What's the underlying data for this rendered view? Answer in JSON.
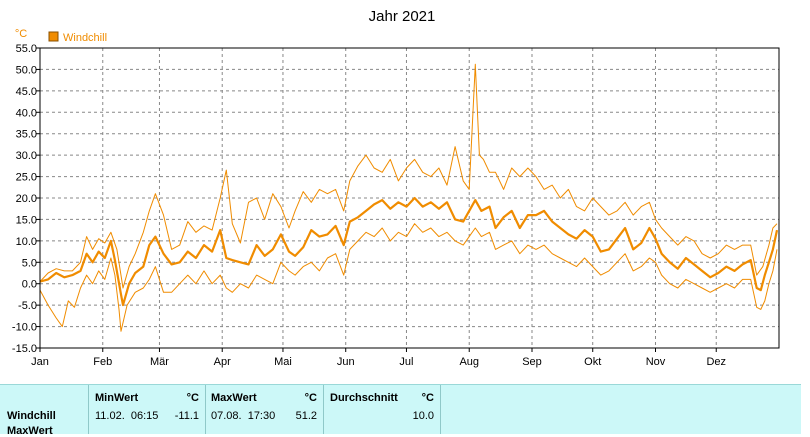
{
  "chart_data": {
    "type": "line",
    "title": "Jahr 2021",
    "ylabel": "°C",
    "legend": "Windchill",
    "legend_placement": "top-left",
    "grid": true,
    "ylim": [
      -15,
      55
    ],
    "y_ticks": [
      "55.0",
      "50.0",
      "45.0",
      "40.0",
      "35.0",
      "30.0",
      "25.0",
      "20.0",
      "15.0",
      "10.0",
      "5.0",
      "0.0",
      "-5.0",
      "-10.0",
      "-15.0"
    ],
    "x_ticks": [
      "Jan",
      "Feb",
      "Mär",
      "Apr",
      "Mai",
      "Jun",
      "Jul",
      "Aug",
      "Sep",
      "Okt",
      "Nov",
      "Dez"
    ],
    "x_tick_day": [
      1,
      32,
      60,
      91,
      121,
      152,
      182,
      213,
      244,
      274,
      305,
      335
    ],
    "days_in_year": 365,
    "colors": {
      "series": "#f08c00",
      "axis": "#000000",
      "grid": "#888888"
    },
    "series": [
      {
        "name": "Windchill",
        "points": [
          [
            1,
            0.5
          ],
          [
            5,
            1.0
          ],
          [
            9,
            2.5
          ],
          [
            13,
            1.5
          ],
          [
            17,
            2.0
          ],
          [
            21,
            3.0
          ],
          [
            24,
            7.0
          ],
          [
            27,
            5.0
          ],
          [
            30,
            7.5
          ],
          [
            33,
            6.0
          ],
          [
            36,
            10.0
          ],
          [
            38,
            5.5
          ],
          [
            41,
            -2.5
          ],
          [
            42,
            -5.0
          ],
          [
            45,
            0.0
          ],
          [
            48,
            2.5
          ],
          [
            52,
            4.0
          ],
          [
            55,
            9.0
          ],
          [
            58,
            11.0
          ],
          [
            62,
            7.0
          ],
          [
            66,
            4.5
          ],
          [
            70,
            5.0
          ],
          [
            74,
            7.5
          ],
          [
            78,
            6.0
          ],
          [
            82,
            9.0
          ],
          [
            86,
            7.5
          ],
          [
            90,
            12.5
          ],
          [
            93,
            6.0
          ],
          [
            96,
            5.5
          ],
          [
            100,
            5.0
          ],
          [
            104,
            4.5
          ],
          [
            108,
            9.0
          ],
          [
            112,
            6.5
          ],
          [
            116,
            8.0
          ],
          [
            120,
            11.5
          ],
          [
            124,
            7.5
          ],
          [
            127,
            6.5
          ],
          [
            131,
            8.5
          ],
          [
            135,
            12.5
          ],
          [
            139,
            11.0
          ],
          [
            143,
            11.5
          ],
          [
            147,
            13.5
          ],
          [
            151,
            9.0
          ],
          [
            154,
            14.5
          ],
          [
            158,
            15.5
          ],
          [
            162,
            17.0
          ],
          [
            166,
            18.5
          ],
          [
            170,
            19.5
          ],
          [
            174,
            17.5
          ],
          [
            178,
            19.0
          ],
          [
            182,
            18.0
          ],
          [
            186,
            20.0
          ],
          [
            190,
            18.0
          ],
          [
            194,
            19.0
          ],
          [
            198,
            17.5
          ],
          [
            202,
            19.0
          ],
          [
            206,
            15.0
          ],
          [
            210,
            14.5
          ],
          [
            213,
            17.0
          ],
          [
            216,
            19.5
          ],
          [
            219,
            17.0
          ],
          [
            223,
            18.0
          ],
          [
            226,
            13.0
          ],
          [
            230,
            15.5
          ],
          [
            234,
            17.0
          ],
          [
            238,
            13.0
          ],
          [
            242,
            16.0
          ],
          [
            246,
            16.0
          ],
          [
            250,
            17.0
          ],
          [
            254,
            14.5
          ],
          [
            258,
            13.0
          ],
          [
            262,
            11.5
          ],
          [
            266,
            10.5
          ],
          [
            270,
            12.5
          ],
          [
            274,
            11.0
          ],
          [
            278,
            7.5
          ],
          [
            282,
            8.0
          ],
          [
            286,
            10.5
          ],
          [
            290,
            13.0
          ],
          [
            294,
            8.0
          ],
          [
            298,
            9.5
          ],
          [
            302,
            13.0
          ],
          [
            305,
            10.5
          ],
          [
            308,
            7.0
          ],
          [
            312,
            5.0
          ],
          [
            316,
            3.5
          ],
          [
            320,
            6.0
          ],
          [
            324,
            4.5
          ],
          [
            328,
            3.0
          ],
          [
            332,
            1.5
          ],
          [
            336,
            2.5
          ],
          [
            340,
            4.0
          ],
          [
            344,
            3.0
          ],
          [
            348,
            4.5
          ],
          [
            352,
            5.5
          ],
          [
            355,
            -1.0
          ],
          [
            357,
            -1.5
          ],
          [
            359,
            2.0
          ],
          [
            361,
            5.0
          ],
          [
            363,
            8.0
          ],
          [
            365,
            12.5
          ]
        ]
      },
      {
        "name": "MaxWert",
        "points": [
          [
            1,
            0.5
          ],
          [
            5,
            2.5
          ],
          [
            9,
            3.5
          ],
          [
            13,
            3.0
          ],
          [
            17,
            3.0
          ],
          [
            21,
            5.0
          ],
          [
            24,
            11.0
          ],
          [
            27,
            8.0
          ],
          [
            30,
            10.5
          ],
          [
            33,
            9.5
          ],
          [
            36,
            12.0
          ],
          [
            39,
            8.0
          ],
          [
            42,
            -1.0
          ],
          [
            45,
            4.0
          ],
          [
            48,
            7.0
          ],
          [
            52,
            12.0
          ],
          [
            55,
            17.0
          ],
          [
            58,
            21.0
          ],
          [
            62,
            16.0
          ],
          [
            66,
            8.0
          ],
          [
            70,
            9.0
          ],
          [
            74,
            14.5
          ],
          [
            78,
            12.0
          ],
          [
            82,
            13.5
          ],
          [
            86,
            12.5
          ],
          [
            90,
            20.0
          ],
          [
            93,
            26.5
          ],
          [
            96,
            14.0
          ],
          [
            100,
            9.5
          ],
          [
            104,
            19.0
          ],
          [
            108,
            20.0
          ],
          [
            112,
            15.0
          ],
          [
            116,
            21.0
          ],
          [
            120,
            18.0
          ],
          [
            124,
            13.0
          ],
          [
            127,
            17.0
          ],
          [
            131,
            21.5
          ],
          [
            135,
            19.0
          ],
          [
            139,
            22.0
          ],
          [
            143,
            21.0
          ],
          [
            147,
            22.0
          ],
          [
            151,
            17.0
          ],
          [
            154,
            24.0
          ],
          [
            158,
            27.5
          ],
          [
            162,
            30.0
          ],
          [
            166,
            27.0
          ],
          [
            170,
            26.0
          ],
          [
            174,
            29.0
          ],
          [
            178,
            24.0
          ],
          [
            182,
            27.0
          ],
          [
            186,
            29.0
          ],
          [
            190,
            26.0
          ],
          [
            194,
            25.0
          ],
          [
            198,
            27.0
          ],
          [
            202,
            23.0
          ],
          [
            206,
            32.0
          ],
          [
            210,
            24.0
          ],
          [
            213,
            22.0
          ],
          [
            216,
            51.2
          ],
          [
            218,
            30.0
          ],
          [
            220,
            29.0
          ],
          [
            223,
            26.0
          ],
          [
            226,
            26.0
          ],
          [
            230,
            22.0
          ],
          [
            234,
            27.0
          ],
          [
            238,
            25.0
          ],
          [
            242,
            27.0
          ],
          [
            246,
            25.0
          ],
          [
            250,
            22.0
          ],
          [
            254,
            23.0
          ],
          [
            258,
            20.0
          ],
          [
            262,
            22.0
          ],
          [
            266,
            18.0
          ],
          [
            270,
            17.0
          ],
          [
            274,
            20.0
          ],
          [
            278,
            18.0
          ],
          [
            282,
            16.0
          ],
          [
            286,
            17.0
          ],
          [
            290,
            19.0
          ],
          [
            294,
            16.0
          ],
          [
            298,
            18.0
          ],
          [
            302,
            19.0
          ],
          [
            305,
            15.0
          ],
          [
            308,
            13.0
          ],
          [
            312,
            11.0
          ],
          [
            316,
            9.0
          ],
          [
            320,
            11.0
          ],
          [
            324,
            10.0
          ],
          [
            328,
            7.0
          ],
          [
            332,
            6.0
          ],
          [
            336,
            7.0
          ],
          [
            340,
            9.0
          ],
          [
            344,
            8.0
          ],
          [
            348,
            9.0
          ],
          [
            352,
            9.0
          ],
          [
            355,
            2.0
          ],
          [
            358,
            4.0
          ],
          [
            361,
            9.0
          ],
          [
            363,
            13.0
          ],
          [
            365,
            14.0
          ]
        ]
      },
      {
        "name": "MinWert",
        "points": [
          [
            1,
            -1.5
          ],
          [
            5,
            -5.0
          ],
          [
            9,
            -8.0
          ],
          [
            12,
            -10.0
          ],
          [
            15,
            -4.0
          ],
          [
            18,
            -5.5
          ],
          [
            21,
            -1.0
          ],
          [
            24,
            2.0
          ],
          [
            27,
            0.0
          ],
          [
            30,
            3.0
          ],
          [
            33,
            1.0
          ],
          [
            36,
            6.0
          ],
          [
            38,
            2.0
          ],
          [
            40,
            -6.0
          ],
          [
            41,
            -11.1
          ],
          [
            44,
            -5.0
          ],
          [
            48,
            -2.0
          ],
          [
            52,
            -1.0
          ],
          [
            55,
            1.0
          ],
          [
            58,
            4.0
          ],
          [
            62,
            -2.0
          ],
          [
            66,
            -2.0
          ],
          [
            70,
            0.0
          ],
          [
            74,
            2.0
          ],
          [
            78,
            0.0
          ],
          [
            82,
            3.0
          ],
          [
            86,
            0.0
          ],
          [
            90,
            2.0
          ],
          [
            93,
            -1.0
          ],
          [
            96,
            -2.0
          ],
          [
            100,
            0.0
          ],
          [
            104,
            -1.0
          ],
          [
            108,
            2.0
          ],
          [
            112,
            1.0
          ],
          [
            116,
            0.0
          ],
          [
            120,
            5.0
          ],
          [
            124,
            3.0
          ],
          [
            127,
            2.0
          ],
          [
            131,
            4.0
          ],
          [
            135,
            5.0
          ],
          [
            139,
            3.0
          ],
          [
            143,
            6.0
          ],
          [
            147,
            7.0
          ],
          [
            151,
            2.0
          ],
          [
            154,
            8.0
          ],
          [
            158,
            10.0
          ],
          [
            162,
            12.0
          ],
          [
            166,
            11.0
          ],
          [
            170,
            13.0
          ],
          [
            174,
            10.0
          ],
          [
            178,
            12.0
          ],
          [
            182,
            11.0
          ],
          [
            186,
            14.0
          ],
          [
            190,
            12.0
          ],
          [
            194,
            13.0
          ],
          [
            198,
            11.0
          ],
          [
            202,
            12.0
          ],
          [
            206,
            10.0
          ],
          [
            210,
            9.0
          ],
          [
            213,
            11.0
          ],
          [
            216,
            13.0
          ],
          [
            219,
            11.0
          ],
          [
            223,
            12.0
          ],
          [
            226,
            8.0
          ],
          [
            230,
            9.0
          ],
          [
            234,
            10.0
          ],
          [
            238,
            7.0
          ],
          [
            242,
            9.0
          ],
          [
            246,
            8.0
          ],
          [
            250,
            9.0
          ],
          [
            254,
            7.0
          ],
          [
            258,
            6.0
          ],
          [
            262,
            5.0
          ],
          [
            266,
            4.0
          ],
          [
            270,
            6.0
          ],
          [
            274,
            4.0
          ],
          [
            278,
            2.0
          ],
          [
            282,
            3.0
          ],
          [
            286,
            5.0
          ],
          [
            290,
            7.0
          ],
          [
            294,
            3.0
          ],
          [
            298,
            4.0
          ],
          [
            302,
            6.0
          ],
          [
            305,
            5.0
          ],
          [
            308,
            2.0
          ],
          [
            312,
            0.0
          ],
          [
            316,
            -1.0
          ],
          [
            320,
            1.0
          ],
          [
            324,
            0.0
          ],
          [
            328,
            -1.0
          ],
          [
            332,
            -2.0
          ],
          [
            336,
            -1.0
          ],
          [
            340,
            0.0
          ],
          [
            344,
            -1.0
          ],
          [
            348,
            1.0
          ],
          [
            352,
            1.0
          ],
          [
            355,
            -5.5
          ],
          [
            357,
            -6.0
          ],
          [
            359,
            -4.0
          ],
          [
            361,
            0.0
          ],
          [
            363,
            3.0
          ],
          [
            365,
            8.0
          ]
        ]
      }
    ]
  },
  "stats": {
    "row_labels": [
      "Windchill",
      "MaxWert"
    ],
    "columns": [
      {
        "header": "MinWert",
        "unit": "°C",
        "datetime": "11.02.  06:15",
        "value": "-11.1"
      },
      {
        "header": "MaxWert",
        "unit": "°C",
        "datetime": "07.08.  17:30",
        "value": "51.2"
      },
      {
        "header": "Durchschnitt",
        "unit": "°C",
        "datetime": "",
        "value": "10.0"
      }
    ]
  }
}
